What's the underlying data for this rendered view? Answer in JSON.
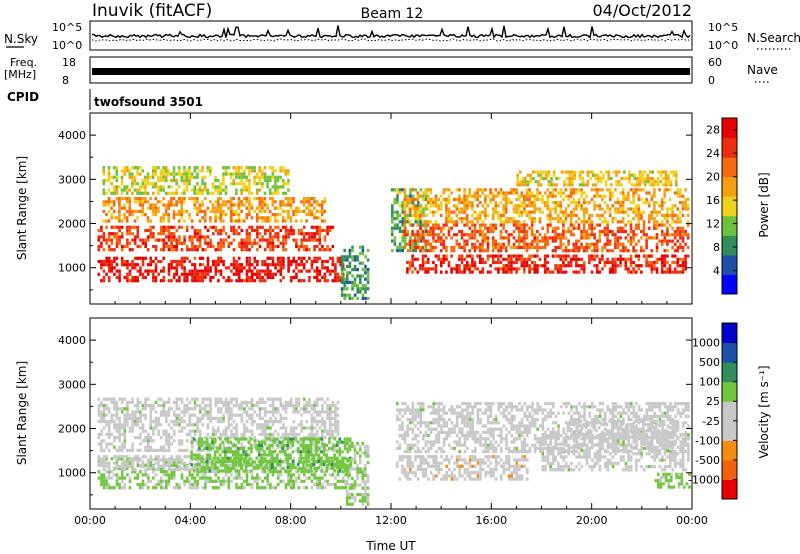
{
  "header": {
    "station": "Inuvik (fitACF)",
    "beam": "Beam 12",
    "date": "04/Oct/2012"
  },
  "strips": {
    "nsky_label": "N.Sky",
    "nsearch_label": "N.Search",
    "nsky_ticks": [
      "10^5",
      "10^0"
    ],
    "nsearch_ticks": [
      "10^5",
      "10^0"
    ],
    "freq_label": "Freq.",
    "freq_unit": "[MHz]",
    "freq_ticks": [
      "18",
      "8"
    ],
    "nave_label": "Nave",
    "nave_ticks": [
      "60",
      "0"
    ],
    "cpid_label": "CPID",
    "cpid_value": "twofsound 3501"
  },
  "colors": {
    "power_scale": [
      "#0000ff",
      "#1e50a8",
      "#2f8e5a",
      "#6cc23a",
      "#f0d21c",
      "#f5a010",
      "#f56a0c",
      "#ee2b0f",
      "#e60000"
    ],
    "velocity_scale": [
      "#e60000",
      "#f3610e",
      "#f58c12",
      "#c8c8c8",
      "#c8c8c8",
      "#70c63c",
      "#2f8e5a",
      "#1e50a8",
      "#0000cc"
    ]
  },
  "chart_data": [
    {
      "type": "heatmap",
      "panel": "power",
      "x_axis": "Time UT",
      "x_ticks": [
        "00:00",
        "04:00",
        "08:00",
        "12:00",
        "16:00",
        "20:00",
        "00:00"
      ],
      "xlim_hours": [
        0,
        24
      ],
      "ylabel": "Slant Range [km]",
      "y_ticks": [
        1000,
        2000,
        3000,
        4000
      ],
      "ylim": [
        180,
        4500
      ],
      "colorbar_label": "Power [dB]",
      "colorbar_ticks": [
        "4",
        "8",
        "12",
        "16",
        "20",
        "24",
        "28"
      ],
      "colorbar_range": [
        0,
        30
      ],
      "scatter_bands": [
        {
          "t0": 0.3,
          "t1": 10.2,
          "r0": 650,
          "r1": 1250,
          "value": 27
        },
        {
          "t0": 0.3,
          "t1": 9.8,
          "r0": 1300,
          "r1": 1950,
          "value": 24
        },
        {
          "t0": 0.5,
          "t1": 9.5,
          "r0": 1950,
          "r1": 2600,
          "value": 19
        },
        {
          "t0": 0.5,
          "t1": 8.0,
          "r0": 2600,
          "r1": 3300,
          "value": 14
        },
        {
          "t0": 10.0,
          "t1": 11.2,
          "r0": 200,
          "r1": 1500,
          "value": 9
        },
        {
          "t0": 12.0,
          "t1": 13.5,
          "r0": 1300,
          "r1": 2800,
          "value": 10
        },
        {
          "t0": 12.5,
          "t1": 24.0,
          "r0": 800,
          "r1": 1300,
          "value": 26
        },
        {
          "t0": 12.5,
          "t1": 24.0,
          "r0": 1300,
          "r1": 2000,
          "value": 23
        },
        {
          "t0": 12.5,
          "t1": 24.0,
          "r0": 2000,
          "r1": 2800,
          "value": 18
        },
        {
          "t0": 17.0,
          "t1": 23.5,
          "r0": 2800,
          "r1": 3200,
          "value": 16
        }
      ]
    },
    {
      "type": "heatmap",
      "panel": "velocity",
      "x_axis": "Time UT",
      "x_ticks": [
        "00:00",
        "04:00",
        "08:00",
        "12:00",
        "16:00",
        "20:00",
        "00:00"
      ],
      "xlim_hours": [
        0,
        24
      ],
      "xlabel": "Time UT",
      "ylabel": "Slant Range [km]",
      "y_ticks": [
        1000,
        2000,
        3000,
        4000
      ],
      "ylim": [
        180,
        4500
      ],
      "colorbar_label": "Velocity [m s⁻¹]",
      "colorbar_ticks": [
        "1000",
        "500",
        "100",
        "25",
        "-25",
        "-100",
        "-500",
        "-1000"
      ],
      "colorbar_range": [
        -1250,
        1250
      ],
      "scatter_bands": [
        {
          "t0": 0.3,
          "t1": 10.5,
          "r0": 600,
          "r1": 1350,
          "value": 180
        },
        {
          "t0": 0.3,
          "t1": 5.0,
          "r0": 1000,
          "r1": 1400,
          "value": -180
        },
        {
          "t0": 0.3,
          "t1": 10.0,
          "r0": 1400,
          "r1": 2700,
          "value": 0
        },
        {
          "t0": 4.0,
          "t1": 10.5,
          "r0": 1000,
          "r1": 1800,
          "value": 300
        },
        {
          "t0": 10.2,
          "t1": 11.2,
          "r0": 200,
          "r1": 1700,
          "value": 150
        },
        {
          "t0": 12.2,
          "t1": 17.5,
          "r0": 800,
          "r1": 1400,
          "value": -300
        },
        {
          "t0": 12.2,
          "t1": 24.0,
          "r0": 1400,
          "r1": 2600,
          "value": 0
        },
        {
          "t0": 18.0,
          "t1": 24.0,
          "r0": 1000,
          "r1": 1900,
          "value": 0
        },
        {
          "t0": 19.0,
          "t1": 23.5,
          "r0": 1700,
          "r1": 2200,
          "value": -200
        },
        {
          "t0": 22.5,
          "t1": 24.0,
          "r0": 600,
          "r1": 1000,
          "value": 250
        }
      ]
    }
  ]
}
